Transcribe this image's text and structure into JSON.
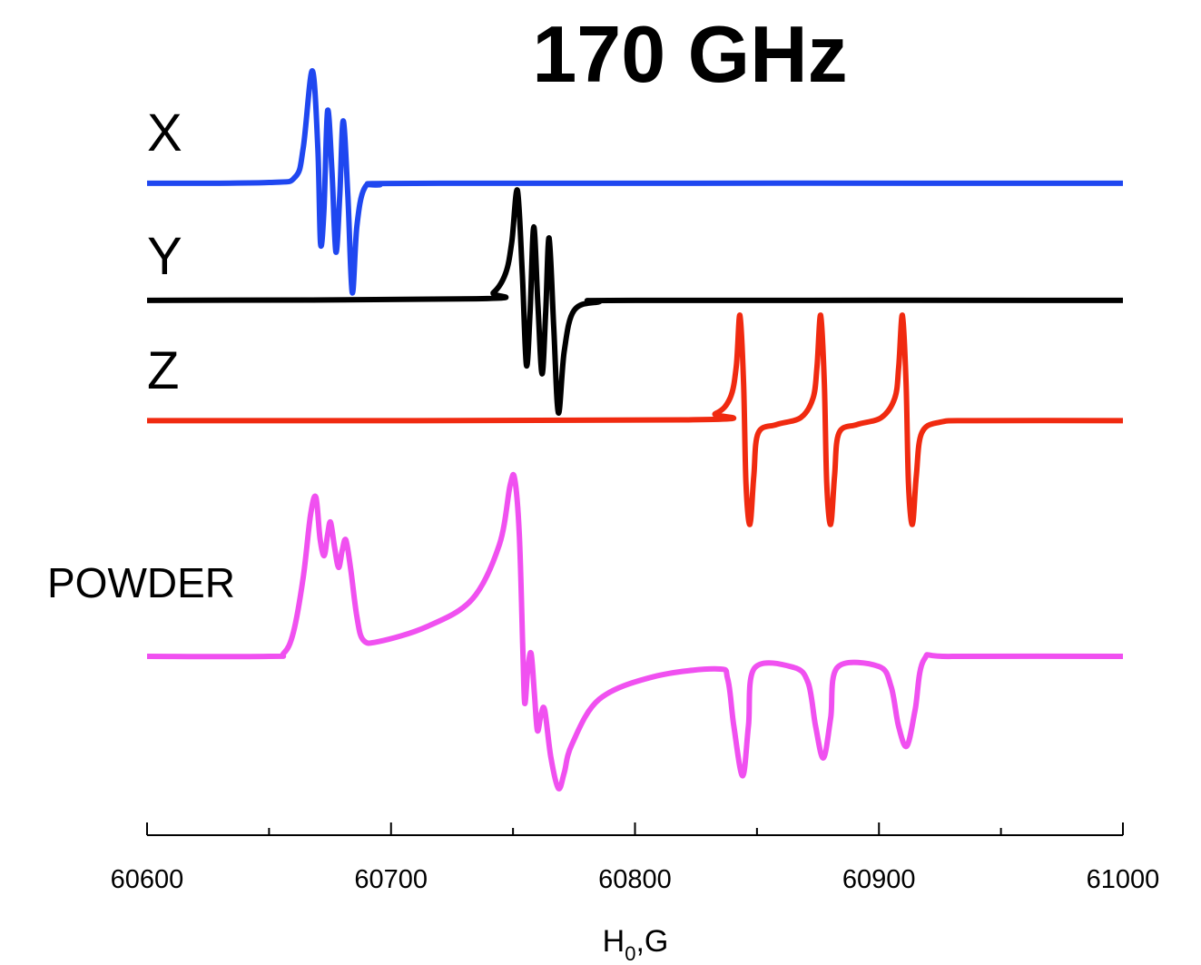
{
  "chart_data": {
    "type": "line",
    "title": "170 GHz",
    "x_label": [
      "H",
      "0",
      ",G"
    ],
    "xlim": [
      60600,
      61000
    ],
    "xticks": [
      60600,
      60700,
      60800,
      60900,
      61000
    ],
    "xminor_ticks": [
      60650,
      60750,
      60850,
      60950
    ],
    "ylim": [
      0,
      100
    ],
    "series": [
      {
        "name": "X",
        "color": "#1f47f0",
        "x": [
          60600,
          60650,
          60660.7,
          60664,
          60667.7,
          60670,
          60671.1,
          60672.5,
          60674,
          60675.8,
          60677.4,
          60679,
          60680.4,
          60682.3,
          60684.1,
          60686,
          60689,
          60695,
          60720,
          61000
        ],
        "values": [
          83.5,
          83.6,
          84.3,
          88,
          97.9,
          88,
          75.8,
          80,
          92.8,
          85,
          74.7,
          82,
          91.5,
          82,
          69.5,
          78,
          82.8,
          83.3,
          83.5,
          83.5
        ]
      },
      {
        "name": "Y",
        "color": "#000000",
        "x": [
          60600,
          60735,
          60742,
          60747,
          60749.5,
          60751.8,
          60753.8,
          60755.5,
          60757,
          60758.5,
          60760.2,
          60761.9,
          60763.4,
          60764.8,
          60766.7,
          60768.6,
          60771,
          60775,
          60785,
          60800,
          61000
        ],
        "values": [
          68.5,
          68.7,
          69.5,
          72,
          76,
          82.6,
          72,
          60.2,
          67,
          77.9,
          68,
          59.1,
          67,
          76.5,
          65,
          54.1,
          62,
          67.2,
          68.3,
          68.5,
          68.5
        ]
      },
      {
        "name": "Z",
        "color": "#f02a10",
        "x": [
          60600,
          60820,
          60833,
          60839,
          60841.5,
          60843,
          60844.5,
          60845.5,
          60847.1,
          60848.7,
          60850.5,
          60858,
          60868,
          60873,
          60874.6,
          60876.1,
          60877.6,
          60878.6,
          60880.2,
          60881.8,
          60883.6,
          60891,
          60901,
          60906.5,
          60908.1,
          60909.6,
          60911.1,
          60912.1,
          60913.7,
          60915.3,
          60917.5,
          60925,
          60940,
          61000
        ],
        "values": [
          53.1,
          53.2,
          54,
          56,
          60,
          66.6,
          58,
          45,
          39.8,
          46,
          51.5,
          52.6,
          53.5,
          56,
          60,
          66.6,
          58,
          45,
          39.8,
          46,
          51.5,
          52.6,
          53.5,
          56,
          60,
          66.6,
          58,
          45,
          39.8,
          46,
          51.5,
          52.9,
          53.1,
          53.1
        ]
      },
      {
        "name": "POWDER",
        "color": "#f050f0",
        "x": [
          60600,
          60650,
          60656,
          60660,
          60664,
          60667,
          60669.2,
          60670.9,
          60672.6,
          60674,
          60675.2,
          60676.8,
          60678.5,
          60680,
          60681.5,
          60683.5,
          60686,
          60688.6,
          60695,
          60714.6,
          60733.2,
          60744.4,
          60748.8,
          60750.7,
          60752.6,
          60754,
          60754.8,
          60756,
          60757.4,
          60758.8,
          60760,
          60761.5,
          60763,
          60765.5,
          60768.6,
          60771,
          60774.1,
          60785.3,
          60807.6,
          60833.7,
          60838,
          60840.5,
          60844.1,
          60846.5,
          60849,
          60865,
          60871,
          60874,
          60877.2,
          60880.2,
          60883,
          60900,
          60905,
          60908,
          60911.4,
          60914.8,
          60918.5,
          60930,
          61000
        ],
        "values": [
          22.9,
          22.9,
          23.3,
          26,
          33,
          41,
          43.3,
          38,
          35.8,
          38.5,
          40.1,
          37,
          34.3,
          36.5,
          37.8,
          34,
          28,
          25,
          24.8,
          26.7,
          30.2,
          37.2,
          44.8,
          45.6,
          38.4,
          24,
          16.9,
          21,
          23.3,
          18,
          13.4,
          15.5,
          16,
          10,
          6,
          8,
          11.6,
          17.4,
          20.3,
          21.3,
          20,
          14,
          7.6,
          14,
          21.4,
          21.5,
          19.5,
          14,
          9.9,
          15,
          21.5,
          21.6,
          19,
          14,
          11.4,
          16,
          22.5,
          22.9,
          22.9
        ]
      }
    ]
  }
}
